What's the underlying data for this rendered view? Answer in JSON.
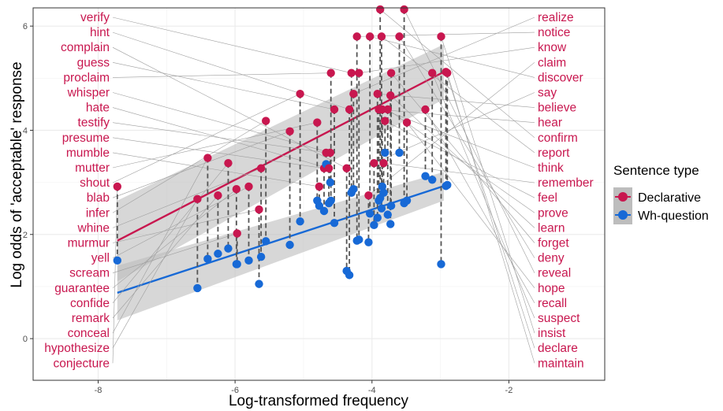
{
  "chart_data": {
    "type": "scatter",
    "xlabel": "Log-transformed frequency",
    "ylabel": "Log odds of 'acceptable' response",
    "xlim": [
      -8.95,
      -0.6
    ],
    "ylim": [
      -0.8,
      6.35
    ],
    "x_ticks": [
      -8,
      -6,
      -4,
      -2
    ],
    "y_ticks": [
      0,
      2,
      4,
      6
    ],
    "x_tick_labels": [
      "-8",
      "-6",
      "-4",
      "-2"
    ],
    "y_tick_labels": [
      "0",
      "2",
      "4",
      "6"
    ],
    "grid": true,
    "legend": {
      "title": "Sentence type",
      "position": "right",
      "entries": [
        "Declarative",
        "Wh-question"
      ]
    },
    "colors": {
      "Declarative": "#c8174f",
      "Wh-question": "#1769d6",
      "ribbon": "#bdbdbd",
      "label": "#c8174f"
    },
    "series": [
      {
        "name": "Declarative",
        "trend": {
          "x": [
            -7.72,
            -2.95
          ],
          "y": [
            1.88,
            5.12
          ],
          "band_upper": [
            2.65,
            5.65
          ],
          "band_lower": [
            1.1,
            4.6
          ]
        }
      },
      {
        "name": "Wh-question",
        "trend": {
          "x": [
            -7.72,
            -2.95
          ],
          "y": [
            0.88,
            2.93
          ],
          "band_upper": [
            1.4,
            3.2
          ],
          "band_lower": [
            0.35,
            2.65
          ]
        }
      }
    ],
    "left_labels": [
      "verify",
      "hint",
      "complain",
      "guess",
      "proclaim",
      "whisper",
      "hate",
      "testify",
      "presume",
      "mumble",
      "mutter",
      "shout",
      "blab",
      "infer",
      "whine",
      "murmur",
      "yell",
      "scream",
      "guarantee",
      "confide",
      "remark",
      "conceal",
      "hypothesize",
      "conjecture"
    ],
    "right_labels": [
      "realize",
      "notice",
      "know",
      "claim",
      "discover",
      "say",
      "believe",
      "hear",
      "confirm",
      "report",
      "think",
      "remember",
      "feel",
      "prove",
      "learn",
      "forget",
      "deny",
      "reveal",
      "hope",
      "recall",
      "suspect",
      "insist",
      "declare",
      "maintain"
    ],
    "points": [
      {
        "verb": "conjecture",
        "x": -7.72,
        "decl": 2.92,
        "wh": 1.5
      },
      {
        "verb": "hypothesize",
        "x": -6.55,
        "decl": 2.68,
        "wh": 0.97
      },
      {
        "verb": "conceal",
        "x": -6.4,
        "decl": 3.47,
        "wh": 1.53
      },
      {
        "verb": "remark",
        "x": -6.25,
        "decl": 2.75,
        "wh": 1.63
      },
      {
        "verb": "confide",
        "x": -6.1,
        "decl": 3.37,
        "wh": 1.73
      },
      {
        "verb": "guarantee",
        "x": -5.98,
        "decl": 2.87,
        "wh": 1.43
      },
      {
        "verb": "scream",
        "x": -5.97,
        "decl": 2.02,
        "wh": 1.43
      },
      {
        "verb": "yell",
        "x": -5.8,
        "decl": 2.92,
        "wh": 1.5
      },
      {
        "verb": "murmur",
        "x": -5.65,
        "decl": 2.48,
        "wh": 1.05
      },
      {
        "verb": "whine",
        "x": -5.62,
        "decl": 3.27,
        "wh": 1.57
      },
      {
        "verb": "infer",
        "x": -5.55,
        "decl": 4.18,
        "wh": 1.87
      },
      {
        "verb": "blab",
        "x": -5.2,
        "decl": 3.98,
        "wh": 1.8
      },
      {
        "verb": "shout",
        "x": -5.05,
        "decl": 4.7,
        "wh": 2.25
      },
      {
        "verb": "mutter",
        "x": -4.8,
        "decl": 4.15,
        "wh": 2.65
      },
      {
        "verb": "mumble",
        "x": -4.77,
        "decl": 2.92,
        "wh": 2.55
      },
      {
        "verb": "presume",
        "x": -4.7,
        "decl": 3.27,
        "wh": 2.45
      },
      {
        "verb": "testify",
        "x": -4.67,
        "decl": 3.57,
        "wh": 3.35
      },
      {
        "verb": "hate",
        "x": -4.63,
        "decl": 3.27,
        "wh": 2.6
      },
      {
        "verb": "whisper",
        "x": -4.61,
        "decl": 3.57,
        "wh": 3.0
      },
      {
        "verb": "proclaim",
        "x": -4.6,
        "decl": 5.1,
        "wh": 2.65
      },
      {
        "verb": "guess",
        "x": -4.55,
        "decl": 4.4,
        "wh": 2.22
      },
      {
        "verb": "complain",
        "x": -4.37,
        "decl": 3.27,
        "wh": 1.3
      },
      {
        "verb": "hint",
        "x": -4.33,
        "decl": 4.4,
        "wh": 1.22
      },
      {
        "verb": "verify",
        "x": -4.3,
        "decl": 5.1,
        "wh": 2.8
      },
      {
        "verb": "realize",
        "x": -4.27,
        "decl": 4.7,
        "wh": 2.87
      },
      {
        "verb": "notice",
        "x": -4.22,
        "decl": 5.8,
        "wh": 1.88
      },
      {
        "verb": "know",
        "x": -4.19,
        "decl": 5.1,
        "wh": 1.9
      },
      {
        "verb": "claim",
        "x": -4.05,
        "decl": 2.75,
        "wh": 1.85
      },
      {
        "verb": "discover",
        "x": -4.03,
        "decl": 5.8,
        "wh": 2.4
      },
      {
        "verb": "say",
        "x": -3.97,
        "decl": 3.37,
        "wh": 2.18
      },
      {
        "verb": "believe",
        "x": -3.92,
        "decl": 4.7,
        "wh": 2.32
      },
      {
        "verb": "hear",
        "x": -3.9,
        "decl": 4.4,
        "wh": 2.65
      },
      {
        "verb": "confirm",
        "x": -3.88,
        "decl": 6.32,
        "wh": 2.7
      },
      {
        "verb": "report",
        "x": -3.86,
        "decl": 5.8,
        "wh": 2.5
      },
      {
        "verb": "think",
        "x": -3.85,
        "decl": 4.4,
        "wh": 2.92
      },
      {
        "verb": "remember",
        "x": -3.83,
        "decl": 3.37,
        "wh": 2.8
      },
      {
        "verb": "feel",
        "x": -3.81,
        "decl": 4.18,
        "wh": 3.57
      },
      {
        "verb": "prove",
        "x": -3.77,
        "decl": 4.4,
        "wh": 2.38
      },
      {
        "verb": "learn",
        "x": -3.73,
        "decl": 4.67,
        "wh": 2.2
      },
      {
        "verb": "forget",
        "x": -3.72,
        "decl": 5.1,
        "wh": 2.55
      },
      {
        "verb": "deny",
        "x": -3.6,
        "decl": 5.8,
        "wh": 3.57
      },
      {
        "verb": "reveal",
        "x": -3.53,
        "decl": 6.32,
        "wh": 2.6
      },
      {
        "verb": "hope",
        "x": -3.49,
        "decl": 4.15,
        "wh": 2.65
      },
      {
        "verb": "recall",
        "x": -3.22,
        "decl": 4.4,
        "wh": 3.12
      },
      {
        "verb": "suspect",
        "x": -3.12,
        "decl": 5.1,
        "wh": 3.05
      },
      {
        "verb": "insist",
        "x": -2.99,
        "decl": 5.8,
        "wh": 1.43
      },
      {
        "verb": "declare",
        "x": -2.92,
        "decl": 5.12,
        "wh": 2.93
      },
      {
        "verb": "maintain",
        "x": -2.9,
        "decl": 5.1,
        "wh": 2.95
      }
    ]
  }
}
